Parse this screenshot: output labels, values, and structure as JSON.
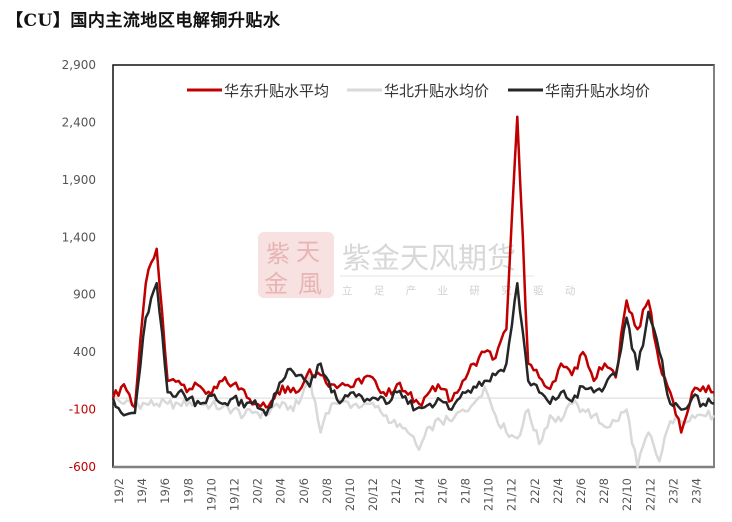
{
  "title": "【CU】国内主流地区电解铜升贴水",
  "watermark": {
    "logo_chars": [
      "紫",
      "天",
      "金",
      "風"
    ],
    "company": "紫金天风期货",
    "slogan": "立 足 产 业 研 究 驱 动"
  },
  "colors": {
    "east": "#c00000",
    "north": "#d9d9d9",
    "south": "#262626",
    "axis_neg_label": "#c00000",
    "axis_label": "#555555"
  },
  "chart_data": {
    "type": "line",
    "title": "【CU】国内主流地区电解铜升贴水",
    "xlabel": "",
    "ylabel": "",
    "ylim": [
      -600,
      2900
    ],
    "yticks": [
      2900,
      2400,
      1900,
      1400,
      900,
      400,
      -100,
      -600
    ],
    "ytick_labels": [
      "2,900",
      "2,400",
      "1,900",
      "1,400",
      "900",
      "400",
      "-100",
      "-600"
    ],
    "xtick_labels": [
      "19/2",
      "19/4",
      "19/6",
      "19/8",
      "19/10",
      "19/12",
      "20/2",
      "20/4",
      "20/6",
      "20/8",
      "20/10",
      "20/12",
      "21/2",
      "21/4",
      "21/6",
      "21/8",
      "21/10",
      "21/12",
      "22/2",
      "22/4",
      "22/6",
      "22/8",
      "22/10",
      "22/12",
      "23/2",
      "23/4"
    ],
    "grid": false,
    "legend_position": "top-inside",
    "x": [
      "19/2",
      "19/3",
      "19/3b",
      "19/4",
      "19/4b",
      "19/5",
      "19/6",
      "19/7",
      "19/8",
      "19/9",
      "19/10",
      "19/11",
      "19/12",
      "20/1",
      "20/2",
      "20/3",
      "20/4",
      "20/5",
      "20/6",
      "20/6b",
      "20/7",
      "20/8",
      "20/9",
      "20/10",
      "20/11",
      "20/12",
      "21/1",
      "21/2",
      "21/3",
      "21/4",
      "21/5",
      "21/6",
      "21/7",
      "21/8",
      "21/9",
      "21/10",
      "21/11",
      "21/11b",
      "21/12",
      "22/1",
      "22/2",
      "22/3",
      "22/4",
      "22/5",
      "22/6",
      "22/7",
      "22/8",
      "22/9",
      "22/10",
      "22/11",
      "22/12",
      "23/1",
      "23/2",
      "23/3",
      "23/4",
      "23/5"
    ],
    "series": [
      {
        "name": "华东升贴水平均",
        "color": "#c00000",
        "values": [
          0,
          120,
          -80,
          1000,
          1300,
          150,
          150,
          80,
          100,
          30,
          150,
          120,
          70,
          -50,
          -80,
          60,
          100,
          60,
          250,
          200,
          120,
          130,
          100,
          180,
          150,
          20,
          120,
          30,
          -50,
          60,
          80,
          -20,
          150,
          300,
          400,
          350,
          600,
          2450,
          300,
          180,
          80,
          300,
          200,
          400,
          150,
          300,
          180,
          850,
          600,
          850,
          300,
          50,
          -300,
          50,
          100,
          50
        ]
      },
      {
        "name": "华北升贴水均价",
        "color": "#d9d9d9",
        "values": [
          0,
          -50,
          -50,
          -50,
          -50,
          -50,
          -50,
          -30,
          -50,
          -60,
          -80,
          -100,
          -150,
          -120,
          -150,
          -50,
          -100,
          -50,
          200,
          -300,
          -50,
          -30,
          -60,
          -50,
          -80,
          -150,
          -250,
          -300,
          -450,
          -250,
          -200,
          -200,
          -100,
          -50,
          100,
          -150,
          -300,
          -350,
          -100,
          -400,
          -150,
          -200,
          -50,
          -100,
          -150,
          -250,
          -200,
          -100,
          -600,
          -300,
          -550,
          -200,
          -200,
          -150,
          -150,
          -150
        ]
      },
      {
        "name": "华南升贴水均价",
        "color": "#262626",
        "values": [
          0,
          -150,
          -130,
          700,
          1000,
          50,
          50,
          0,
          -50,
          20,
          -50,
          0,
          -80,
          -20,
          -150,
          50,
          250,
          200,
          100,
          300,
          50,
          -20,
          50,
          -30,
          0,
          -50,
          50,
          -50,
          -80,
          -50,
          -20,
          -100,
          50,
          100,
          150,
          200,
          300,
          1000,
          150,
          50,
          -50,
          50,
          -30,
          100,
          50,
          100,
          200,
          700,
          250,
          750,
          400,
          -50,
          -100,
          0,
          -50,
          -50
        ]
      }
    ]
  }
}
